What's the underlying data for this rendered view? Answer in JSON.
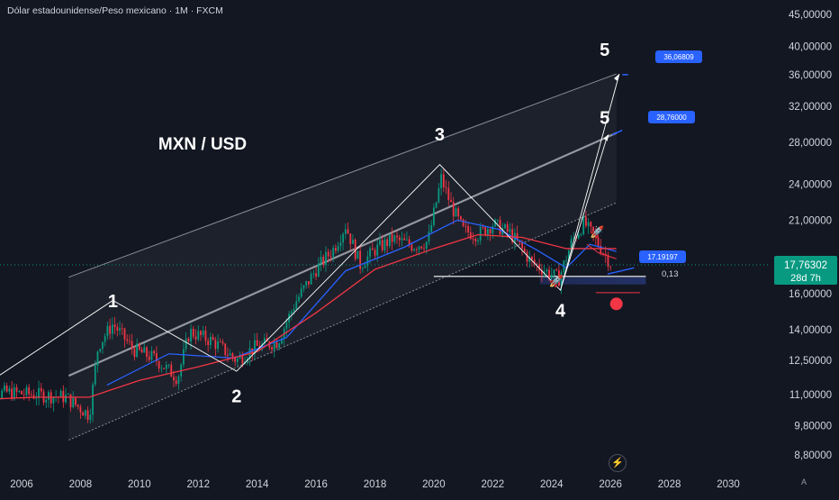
{
  "header": {
    "title": "Dólar estadounidense/Peso mexicano · 1M · FXCM"
  },
  "chart_data": {
    "type": "line",
    "title": "MXN / USD",
    "symbol": "Dólar estadounidense/Peso mexicano",
    "interval": "1M",
    "source": "FXCM",
    "y_scale": "log",
    "ylim": [
      8.5,
      46
    ],
    "xlim": [
      2004.5,
      2031.2
    ],
    "y_ticks": [
      "45,00000",
      "40,00000",
      "36,00000",
      "32,00000",
      "28,00000",
      "24,00000",
      "21,00000",
      "16,00000",
      "14,00000",
      "12,50000",
      "11,00000",
      "9,80000",
      "8,80000"
    ],
    "x_ticks": [
      "2006",
      "2008",
      "2010",
      "2012",
      "2014",
      "2016",
      "2018",
      "2020",
      "2022",
      "2024",
      "2026",
      "2028",
      "2030"
    ],
    "current_price": {
      "label": "17,76302",
      "countdown": "28d 7h",
      "color": "#089981"
    },
    "series": [
      {
        "name": "Precio",
        "color": "#2962ff",
        "x": [
          2004.5,
          2005.5,
          2006.5,
          2007.5,
          2008.3,
          2008.6,
          2009.1,
          2009.8,
          2010.5,
          2011.3,
          2011.7,
          2012.5,
          2013.3,
          2013.9,
          2014.7,
          2015.3,
          2016.0,
          2016.6,
          2017.0,
          2017.5,
          2018.0,
          2018.6,
          2019.3,
          2019.8,
          2020.25,
          2020.6,
          2021.0,
          2021.5,
          2022.0,
          2022.6,
          2023.3,
          2023.8,
          2024.25,
          2024.7,
          2025.1,
          2025.6,
          2026.05
        ],
        "values": [
          10.9,
          11.1,
          11.0,
          10.9,
          10.2,
          13.2,
          14.3,
          13.0,
          12.6,
          11.7,
          13.9,
          13.4,
          12.5,
          13.1,
          13.4,
          15.5,
          17.5,
          18.9,
          20.6,
          17.8,
          18.8,
          19.6,
          19.1,
          19.4,
          24.5,
          22.1,
          20.2,
          19.9,
          20.7,
          20.0,
          18.0,
          17.4,
          16.9,
          19.5,
          20.8,
          19.2,
          17.76
        ]
      },
      {
        "name": "SMA 1",
        "color": "#2962ff",
        "x": [
          2008.9,
          2011.0,
          2013.2,
          2015.0,
          2017.0,
          2019.0,
          2020.8,
          2022.2,
          2023.5,
          2024.5,
          2025.3,
          2026.2
        ],
        "values": [
          11.4,
          12.8,
          12.6,
          13.6,
          17.4,
          19.0,
          21.0,
          20.3,
          18.8,
          17.6,
          19.2,
          18.7
        ]
      },
      {
        "name": "SMA 2",
        "color": "#f23645",
        "x": [
          2004.5,
          2006.5,
          2008.3,
          2010.0,
          2012.0,
          2014.0,
          2016.0,
          2018.0,
          2020.0,
          2021.5,
          2023.0,
          2024.5,
          2025.5,
          2026.2
        ],
        "values": [
          10.8,
          10.9,
          10.9,
          11.6,
          12.2,
          12.9,
          14.9,
          17.5,
          18.9,
          19.9,
          19.7,
          18.9,
          18.9,
          18.9
        ]
      }
    ],
    "annotations": [
      {
        "text": "1",
        "x": 2009.1,
        "y": 15.2
      },
      {
        "text": "2",
        "x": 2013.3,
        "y": 10.7
      },
      {
        "text": "3",
        "x": 2020.2,
        "y": 28.2
      },
      {
        "text": "4",
        "x": 2024.3,
        "y": 14.7
      },
      {
        "text": "5",
        "x": 2025.8,
        "y": 30.0
      },
      {
        "text": "5",
        "x": 2025.8,
        "y": 38.6
      }
    ],
    "price_labels": [
      {
        "text": "36,06809",
        "color": "#2962ff"
      },
      {
        "text": "28,76000",
        "color": "#2962ff"
      },
      {
        "text": "17.19197",
        "color": "#2962ff"
      },
      {
        "text": "0,13",
        "color": "#131722"
      }
    ]
  }
}
